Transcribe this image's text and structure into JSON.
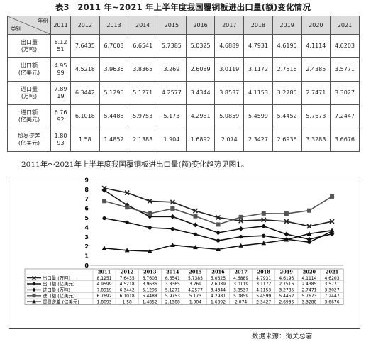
{
  "title": "表3　2011 年~2021 年上半年度我国覆铜板进出口量(额)变化情况",
  "table": {
    "corner_top": "年份",
    "corner_bottom": "类别",
    "years": [
      "2011",
      "2012",
      "2013",
      "2014",
      "2015",
      "2016",
      "2017",
      "2018",
      "2019",
      "2020",
      "2021"
    ],
    "rows": [
      {
        "label": "出口量",
        "unit": "(万吨)",
        "first_a": "8.12",
        "first_b": "51",
        "values": [
          "7.6435",
          "6.7603",
          "6.6541",
          "5.7385",
          "5.0325",
          "4.6889",
          "4.7931",
          "4.6195",
          "4.1114",
          "4.6203"
        ]
      },
      {
        "label": "出口额",
        "unit": "(亿美元)",
        "first_a": "4.95",
        "first_b": "99",
        "values": [
          "4.5218",
          "3.9636",
          "3.8365",
          "3.269",
          "2.6089",
          "3.0119",
          "3.1172",
          "2.7516",
          "2.4385",
          "3.5771"
        ]
      },
      {
        "label": "进口量",
        "unit": "(万吨)",
        "first_a": "7.89",
        "first_b": "19",
        "values": [
          "6.3442",
          "5.1295",
          "5.1271",
          "4.2577",
          "3.4344",
          "3.8537",
          "4.1153",
          "3.2785",
          "2.7471",
          "3.3027"
        ]
      },
      {
        "label": "进口额",
        "unit": "(亿美元)",
        "first_a": "6.76",
        "first_b": "92",
        "values": [
          "6.1018",
          "5.4488",
          "5.9753",
          "5.173",
          "4.2981",
          "5.0859",
          "5.4599",
          "5.4452",
          "5.7673",
          "7.2447"
        ]
      },
      {
        "label": "贸易逆差",
        "unit": "(亿美元)",
        "first_a": "1.80",
        "first_b": "93",
        "values": [
          "1.58",
          "1.4852",
          "2.1388",
          "1.904",
          "1.6892",
          "2.074",
          "2.3427",
          "2.6936",
          "3.3288",
          "3.6676"
        ]
      }
    ]
  },
  "caption": "2011年～2021年上半年度我国覆铜板进出口量(额)变化趋势见图1。",
  "source": "数据来源：海关总署",
  "chart_data": {
    "type": "line",
    "x": [
      "2011",
      "2012",
      "2013",
      "2014",
      "2015",
      "2016",
      "2017",
      "2018",
      "2019",
      "2020",
      "2021"
    ],
    "ylim": [
      0,
      9
    ],
    "yticks": [
      "0",
      "1",
      "2",
      "3",
      "4",
      "5",
      "6",
      "7",
      "8",
      "9"
    ],
    "series": [
      {
        "name": "出口量 (万吨)",
        "marker": "x",
        "color": "#222222",
        "values": [
          8.1251,
          7.6435,
          6.7603,
          6.6541,
          5.7385,
          5.0325,
          4.6889,
          4.7931,
          4.6195,
          4.1114,
          4.6203
        ],
        "labels": [
          "8.1251",
          "7.6435",
          "6.7603",
          "6.6541",
          "5.7385",
          "5.0325",
          "4.6889",
          "4.7931",
          "4.6195",
          "4.1114",
          "4.6203"
        ]
      },
      {
        "name": "出口额 (亿美元)",
        "marker": "circle",
        "color": "#111111",
        "values": [
          4.9599,
          4.5218,
          3.9636,
          3.8365,
          3.269,
          2.6089,
          3.0119,
          3.1172,
          2.7516,
          2.4385,
          3.5771
        ],
        "labels": [
          "4.9599",
          "4.5218",
          "3.9636",
          "3.8365",
          "3.269",
          "2.6089",
          "3.0119",
          "3.1172",
          "2.7516",
          "2.4385",
          "3.5771"
        ]
      },
      {
        "name": "进口量 (万吨)",
        "marker": "diamond",
        "color": "#111111",
        "values": [
          7.8919,
          6.3442,
          5.1295,
          5.1271,
          4.2577,
          3.4344,
          3.8537,
          4.1153,
          3.2785,
          2.7471,
          3.3027
        ],
        "labels": [
          "7.8919",
          "6.3442",
          "5.1295",
          "5.1271",
          "4.2577",
          "3.4344",
          "3.8537",
          "4.1153",
          "3.2785",
          "2.7471",
          "3.3027"
        ]
      },
      {
        "name": "进口额 (亿美元)",
        "marker": "square",
        "color": "#555555",
        "values": [
          6.7692,
          6.1018,
          5.4488,
          5.9753,
          5.173,
          4.2981,
          5.0859,
          5.4599,
          5.4452,
          5.7673,
          7.2447
        ],
        "labels": [
          "6.7692",
          "6.1018",
          "5.4488",
          "5.9753",
          "5.173",
          "4.2981",
          "5.0859",
          "5.4599",
          "5.4452",
          "5.7673",
          "7.2447"
        ]
      },
      {
        "name": "贸易逆差 (亿美元)",
        "marker": "triangle",
        "color": "#111111",
        "values": [
          1.8093,
          1.58,
          1.4852,
          2.1388,
          1.904,
          1.6892,
          2.074,
          2.3427,
          2.6936,
          3.3288,
          3.6676
        ],
        "labels": [
          "1.8093",
          "1.58",
          "1.4852",
          "2.1388",
          "1.904",
          "1.6892",
          "2.074",
          "2.3427",
          "2.6936",
          "3.3288",
          "3.6676"
        ]
      }
    ]
  }
}
